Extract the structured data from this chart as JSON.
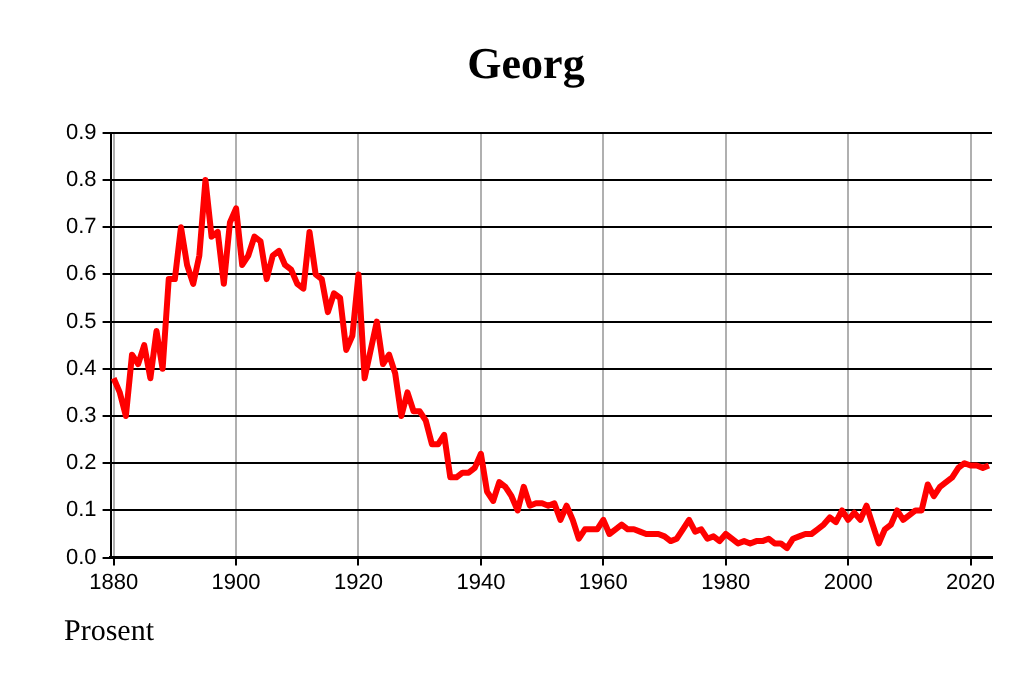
{
  "chart_data": {
    "type": "line",
    "title": "Georg",
    "ylabel": "Prosent",
    "x": [
      1880,
      1881,
      1882,
      1883,
      1884,
      1885,
      1886,
      1887,
      1888,
      1889,
      1890,
      1891,
      1892,
      1893,
      1894,
      1895,
      1896,
      1897,
      1898,
      1899,
      1900,
      1901,
      1902,
      1903,
      1904,
      1905,
      1906,
      1907,
      1908,
      1909,
      1910,
      1911,
      1912,
      1913,
      1914,
      1915,
      1916,
      1917,
      1918,
      1919,
      1920,
      1921,
      1922,
      1923,
      1924,
      1925,
      1926,
      1927,
      1928,
      1929,
      1930,
      1931,
      1932,
      1933,
      1934,
      1935,
      1936,
      1937,
      1938,
      1939,
      1940,
      1941,
      1942,
      1943,
      1944,
      1945,
      1946,
      1947,
      1948,
      1949,
      1950,
      1951,
      1952,
      1953,
      1954,
      1955,
      1956,
      1957,
      1958,
      1959,
      1960,
      1961,
      1962,
      1963,
      1964,
      1965,
      1966,
      1967,
      1968,
      1969,
      1970,
      1971,
      1972,
      1973,
      1974,
      1975,
      1976,
      1977,
      1978,
      1979,
      1980,
      1981,
      1982,
      1983,
      1984,
      1985,
      1986,
      1987,
      1988,
      1989,
      1990,
      1991,
      1992,
      1993,
      1994,
      1995,
      1996,
      1997,
      1998,
      1999,
      2000,
      2001,
      2002,
      2003,
      2004,
      2005,
      2006,
      2007,
      2008,
      2009,
      2010,
      2011,
      2012,
      2013,
      2014,
      2015,
      2016,
      2017,
      2018,
      2019,
      2020,
      2021,
      2022,
      2023
    ],
    "series": [
      {
        "color": "#ff0000",
        "values": [
          0.38,
          0.35,
          0.3,
          0.43,
          0.41,
          0.45,
          0.38,
          0.48,
          0.4,
          0.59,
          0.59,
          0.7,
          0.62,
          0.58,
          0.64,
          0.8,
          0.68,
          0.69,
          0.58,
          0.71,
          0.74,
          0.62,
          0.64,
          0.68,
          0.67,
          0.59,
          0.64,
          0.65,
          0.62,
          0.61,
          0.58,
          0.57,
          0.69,
          0.6,
          0.59,
          0.52,
          0.56,
          0.55,
          0.44,
          0.47,
          0.6,
          0.38,
          0.44,
          0.5,
          0.41,
          0.43,
          0.39,
          0.3,
          0.35,
          0.31,
          0.31,
          0.29,
          0.24,
          0.24,
          0.26,
          0.17,
          0.17,
          0.18,
          0.18,
          0.19,
          0.22,
          0.14,
          0.12,
          0.16,
          0.15,
          0.13,
          0.1,
          0.15,
          0.11,
          0.115,
          0.115,
          0.11,
          0.115,
          0.08,
          0.11,
          0.08,
          0.04,
          0.06,
          0.06,
          0.06,
          0.08,
          0.05,
          0.06,
          0.07,
          0.06,
          0.06,
          0.055,
          0.05,
          0.05,
          0.05,
          0.045,
          0.035,
          0.04,
          0.06,
          0.08,
          0.055,
          0.06,
          0.04,
          0.045,
          0.035,
          0.05,
          0.04,
          0.03,
          0.035,
          0.03,
          0.035,
          0.035,
          0.04,
          0.03,
          0.03,
          0.02,
          0.04,
          0.045,
          0.05,
          0.05,
          0.06,
          0.07,
          0.085,
          0.075,
          0.1,
          0.08,
          0.095,
          0.08,
          0.11,
          0.07,
          0.03,
          0.06,
          0.07,
          0.1,
          0.08,
          0.09,
          0.1,
          0.1,
          0.155,
          0.13,
          0.15,
          0.16,
          0.17,
          0.19,
          0.2,
          0.195,
          0.195,
          0.19,
          0.195
        ]
      }
    ],
    "xlim": [
      1879.5,
      2023.5
    ],
    "xticks": [
      1880,
      1900,
      1920,
      1940,
      1960,
      1980,
      2000,
      2020
    ],
    "ylim": [
      0,
      0.9
    ],
    "yticks": [
      {
        "value": 0,
        "label": "0.0"
      },
      {
        "value": 0.1,
        "label": "0.1"
      },
      {
        "value": 0.2,
        "label": "0.2"
      },
      {
        "value": 0.3,
        "label": "0.3"
      },
      {
        "value": 0.4,
        "label": "0.4"
      },
      {
        "value": 0.5,
        "label": "0.5"
      },
      {
        "value": 0.6,
        "label": "0.6"
      },
      {
        "value": 0.7,
        "label": "0.7"
      },
      {
        "value": 0.8,
        "label": "0.8"
      },
      {
        "value": 0.9,
        "label": "0.9"
      }
    ],
    "grid": true,
    "legend": false,
    "marker": "none",
    "line_style": "solid"
  }
}
